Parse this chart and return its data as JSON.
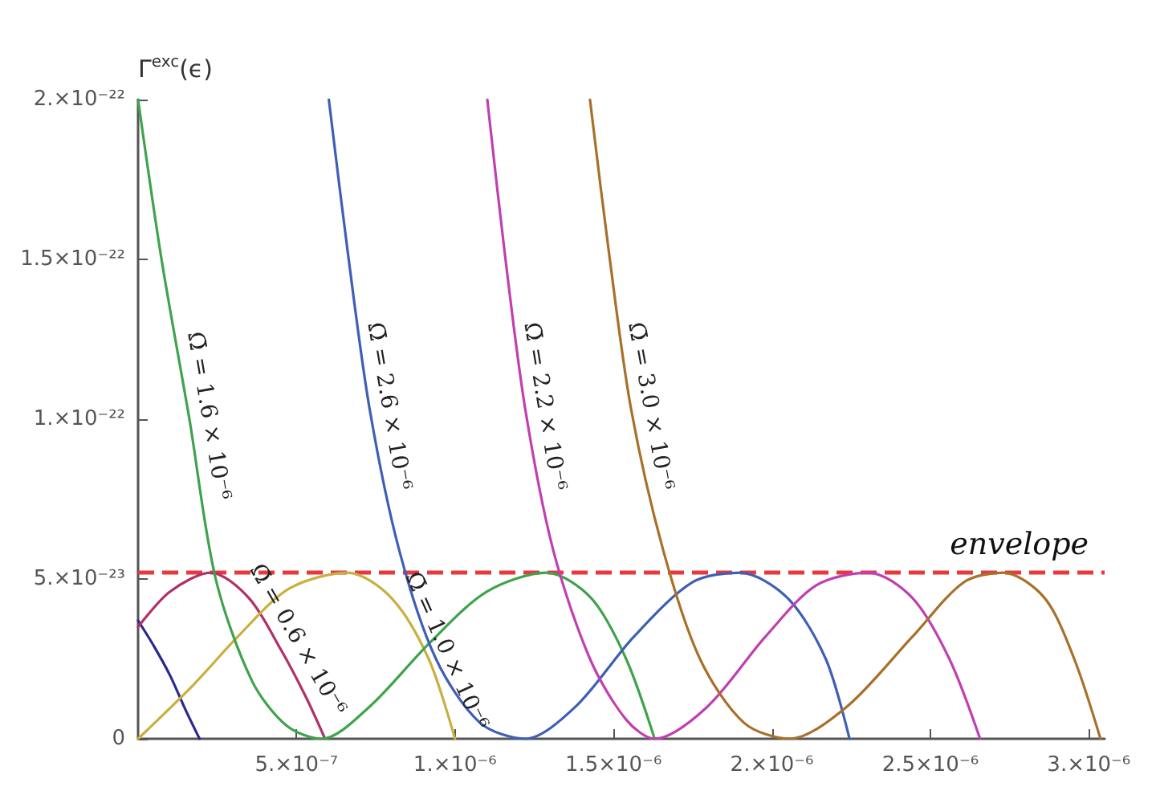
{
  "chart_data": {
    "type": "line",
    "ylabel": "Γ$^{exc}$(ϵ)",
    "xlim": [
      0,
      3.05e-06
    ],
    "xticks": [
      {
        "value": 5e-07,
        "label": "5.×10⁻⁷"
      },
      {
        "value": 1e-06,
        "label": "1.×10⁻⁶"
      },
      {
        "value": 1.5e-06,
        "label": "1.5×10⁻⁶"
      },
      {
        "value": 2e-06,
        "label": "2.×10⁻⁶"
      },
      {
        "value": 2.5e-06,
        "label": "2.5×10⁻⁶"
      },
      {
        "value": 3e-06,
        "label": "3.×10⁻⁶"
      }
    ],
    "ylim": [
      0,
      2e-22
    ],
    "yticks": [
      0,
      {
        "value": 5e-23,
        "label": "5.×10⁻²³"
      },
      {
        "value": 1e-22,
        "label": "1.×10⁻²²"
      },
      {
        "value": 1.5e-22,
        "label": "1.5×10⁻²²"
      },
      {
        "value": 2e-22,
        "label": "2.×10⁻²²"
      }
    ],
    "grid": false,
    "legend": false,
    "marker": "none",
    "line_style": "solid",
    "ref_lines": [
      {
        "axis": "y",
        "value": 5.2e-23,
        "label": "envelope",
        "color": "#e8383d",
        "line_style": "dashed"
      }
    ],
    "series": [
      {
        "color": "#2a2a8c",
        "x": [
          0,
          5e-08,
          1e-07,
          1.5e-07,
          1.94e-07
        ],
        "values": [
          3.7e-23,
          2.9e-23,
          2e-23,
          9e-24,
          0
        ]
      },
      {
        "name": "Ω̄ = 0.6 × 10⁻⁶",
        "color": "#b0306a",
        "x": [
          0,
          1e-07,
          2.3e-07,
          3.5e-07,
          4.5e-07,
          5.3e-07,
          5.9e-07
        ],
        "values": [
          3.5e-23,
          4.6e-23,
          5.2e-23,
          4.4e-23,
          2.8e-23,
          1.3e-23,
          0
        ]
      },
      {
        "name": "Ω̄ = 1.0 × 10⁻⁶",
        "color": "#c8b040",
        "x": [
          0,
          1.76e-07,
          3.15e-07,
          4.77e-07,
          6.62e-07,
          8e-07,
          9.17e-07,
          1e-06
        ],
        "values": [
          0,
          1.7e-23,
          3.2e-23,
          4.7e-23,
          5.2e-23,
          4.4e-23,
          2.5e-23,
          0
        ]
      },
      {
        "name": "Ω̄ = 1.6 × 10⁻⁶",
        "color": "#3fa34d",
        "x": [
          0,
          7.4e-08,
          1.62e-07,
          2.45e-07,
          3.6e-07,
          4.7e-07,
          5.8e-07,
          7.3e-07,
          9.2e-07,
          1.1e-06,
          1.29e-06,
          1.43e-06,
          1.54e-06,
          1.63e-06
        ],
        "values": [
          2e-22,
          1.5e-22,
          1e-22,
          5e-23,
          1.8e-23,
          4e-24,
          0,
          1e-23,
          3e-23,
          4.6e-23,
          5.2e-23,
          4.4e-23,
          2.5e-23,
          0
        ]
      },
      {
        "name": "Ω̄ = 2.6 × 10⁻⁶",
        "color": "#3f5fb5",
        "x": [
          6.02e-07,
          6.62e-07,
          7.31e-07,
          8.24e-07,
          9.4e-07,
          1.079e-06,
          1.222e-06,
          1.38e-06,
          1.565e-06,
          1.75e-06,
          1.9e-06,
          2.05e-06,
          2.17e-06,
          2.245e-06
        ],
        "values": [
          2e-22,
          1.52e-22,
          1.03e-22,
          5.9e-23,
          2.5e-23,
          5e-24,
          0,
          1e-23,
          3.2e-23,
          4.9e-23,
          5.2e-23,
          4.4e-23,
          2.5e-23,
          0
        ]
      },
      {
        "name": "Ω̄ = 2.2 × 10⁻⁶",
        "color": "#c040b0",
        "x": [
          1.102e-06,
          1.157e-06,
          1.222e-06,
          1.31e-06,
          1.426e-06,
          1.54e-06,
          1.63e-06,
          1.796e-06,
          1.98e-06,
          2.14e-06,
          2.306e-06,
          2.444e-06,
          2.56e-06,
          2.657e-06
        ],
        "values": [
          2e-22,
          1.52e-22,
          1.03e-22,
          5.9e-23,
          2.5e-23,
          6e-24,
          0,
          1e-23,
          3.2e-23,
          4.8e-23,
          5.2e-23,
          4.4e-23,
          2.5e-23,
          0
        ]
      },
      {
        "name": "Ω̄ = 3.0 × 10⁻⁶",
        "color": "#a8702a",
        "x": [
          1.426e-06,
          1.486e-06,
          1.556e-06,
          1.657e-06,
          1.773e-06,
          1.912e-06,
          2.056e-06,
          2.236e-06,
          2.444e-06,
          2.606e-06,
          2.731e-06,
          2.861e-06,
          2.954e-06,
          3.037e-06
        ],
        "values": [
          2e-22,
          1.52e-22,
          1.03e-22,
          5.9e-23,
          2.5e-23,
          5e-24,
          0,
          1e-23,
          3.2e-23,
          4.9e-23,
          5.2e-23,
          4.4e-23,
          2.5e-23,
          0
        ]
      }
    ]
  }
}
